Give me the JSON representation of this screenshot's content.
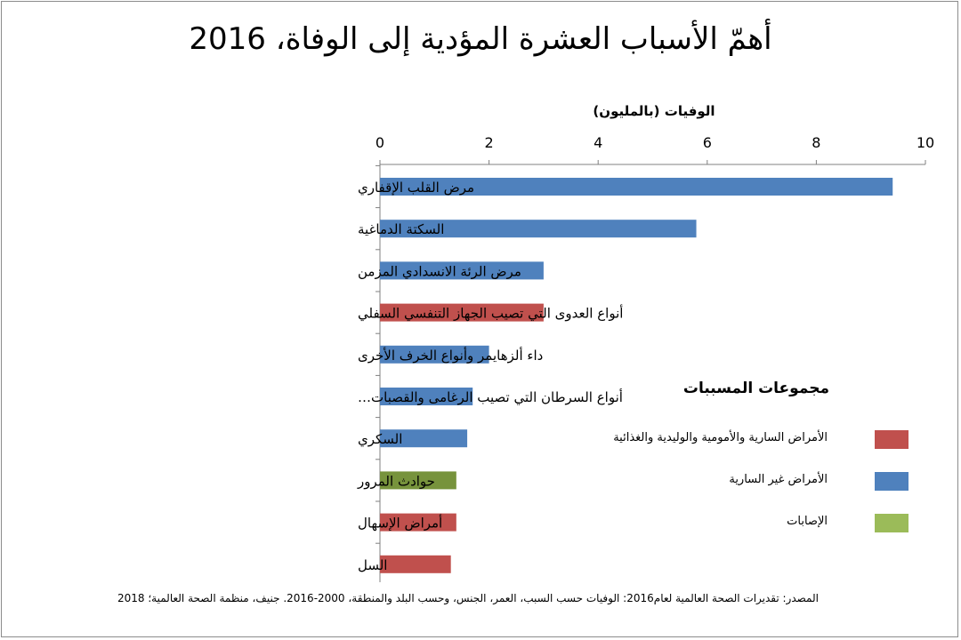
{
  "title": "أهمّ الأسباب العشرة المؤدية إلى الوفاة، 2016",
  "source": "المصدر: تقديرات الصحة العالمية لعام2016: الوفيات حسب السبب، العمر، الجنس، وحسب البلد والمنطقة، 2000-2016. جنيف، منظمة الصحة العالمية؛ 2018",
  "legend": {
    "title": "مجموعات المسببات",
    "items": [
      {
        "label": "الأمراض السارية والأمومية والوليدية والغذائية",
        "color": "#c0504d"
      },
      {
        "label": "الأمراض غير السارية",
        "color": "#4f81bd"
      },
      {
        "label": "الإصابات",
        "color": "#9bbb59"
      }
    ]
  },
  "chart_data": {
    "type": "bar",
    "orientation": "horizontal",
    "xlabel": "الوفيات (بالمليون)",
    "xlim": [
      0,
      10
    ],
    "xticks": [
      "0",
      "2",
      "4",
      "6",
      "8",
      "10"
    ],
    "grid": false,
    "legend_position": "right",
    "categories": [
      "مرض القلب الإقفاري",
      "السكتة الدماغية",
      "مرض الرئة الانسدادي المزمن",
      "أنواع العدوى التي تصيب الجهاز التنفسي السفلي",
      "داء ألزهايمر وأنواع الخرف الأخرى",
      "أنواع السرطان التي تصيب الرغامى والقصبات…",
      "السكري",
      "حوادث المرور",
      "أمراض الإسهال",
      "السل"
    ],
    "values": [
      9.4,
      5.8,
      3.0,
      3.0,
      2.0,
      1.7,
      1.6,
      1.4,
      1.4,
      1.3
    ],
    "groups": [
      "الأمراض غير السارية",
      "الأمراض غير السارية",
      "الأمراض غير السارية",
      "الأمراض السارية والأمومية والوليدية والغذائية",
      "الأمراض غير السارية",
      "الأمراض غير السارية",
      "الأمراض غير السارية",
      "الإصابات",
      "الأمراض السارية والأمومية والوليدية والغذائية",
      "الأمراض السارية والأمومية والوليدية والغذائية"
    ],
    "colors": [
      "#4f81bd",
      "#4f81bd",
      "#4f81bd",
      "#c0504d",
      "#4f81bd",
      "#4f81bd",
      "#4f81bd",
      "#77933c",
      "#c0504d",
      "#c0504d"
    ]
  }
}
